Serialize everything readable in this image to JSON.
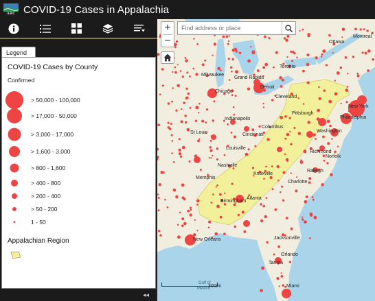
{
  "header": {
    "title": "COVID-19 Cases in Appalachia",
    "logo_text": "ARC"
  },
  "toolbar": {
    "tools": [
      "info-icon",
      "list-icon",
      "grid-icon",
      "layers-icon",
      "filter-list-icon"
    ]
  },
  "legend": {
    "tab_label": "Legend",
    "title": "COVID-19 Cases by County",
    "field": "Confirmed",
    "classes": [
      {
        "label": "> 50,000 - 100,000"
      },
      {
        "label": "> 17,000 - 50,000"
      },
      {
        "label": "> 3,000 - 17,000"
      },
      {
        "label": "> 1,600 - 3,000"
      },
      {
        "label": "> 800 - 1,600"
      },
      {
        "label": "> 400 - 800"
      },
      {
        "label": "> 200 - 400"
      },
      {
        "label": "> 50 - 200"
      },
      {
        "label": "1 - 50"
      }
    ],
    "region_label": "Appalachian Region",
    "dot_color": "#ee4444",
    "region_color": "#f2f09a"
  },
  "panel": {
    "collapse_label": "◂◂"
  },
  "map": {
    "search_placeholder": "Find address or place",
    "zoom_in": "+",
    "zoom_out": "−",
    "scale_label": "300mi",
    "cities": [
      {
        "name": "Ottawa",
        "key": "ottawa"
      },
      {
        "name": "Montreal",
        "key": "montreal"
      },
      {
        "name": "Toronto",
        "key": "toronto"
      },
      {
        "name": "Milwaukee",
        "key": "milwaukee"
      },
      {
        "name": "Grand Rapids",
        "key": "grand-rapids"
      },
      {
        "name": "Detroit",
        "key": "detroit"
      },
      {
        "name": "Chicago",
        "key": "chicago"
      },
      {
        "name": "Cleveland",
        "key": "cleveland"
      },
      {
        "name": "Pittsburgh",
        "key": "pittsburgh"
      },
      {
        "name": "New York",
        "key": "new-york"
      },
      {
        "name": "Philadelphia",
        "key": "philadelphia"
      },
      {
        "name": "Indianapolis",
        "key": "indianapolis"
      },
      {
        "name": "Columbus",
        "key": "columbus"
      },
      {
        "name": "Washington",
        "key": "washington"
      },
      {
        "name": "St Louis",
        "key": "st-louis"
      },
      {
        "name": "Cincinnati",
        "key": "cincinnati"
      },
      {
        "name": "Richmond",
        "key": "richmond"
      },
      {
        "name": "Louisville",
        "key": "louisville"
      },
      {
        "name": "Norfolk",
        "key": "norfolk"
      },
      {
        "name": "Nashville",
        "key": "nashville"
      },
      {
        "name": "Knoxville",
        "key": "knoxville"
      },
      {
        "name": "Raleigh",
        "key": "raleigh"
      },
      {
        "name": "Memphis",
        "key": "memphis"
      },
      {
        "name": "Charlotte",
        "key": "charlotte"
      },
      {
        "name": "Atlanta",
        "key": "atlanta"
      },
      {
        "name": "Birmingham",
        "key": "birmingham"
      },
      {
        "name": "New Orleans",
        "key": "new-orleans"
      },
      {
        "name": "Jacksonville",
        "key": "jacksonville"
      },
      {
        "name": "Orlando",
        "key": "orlando"
      },
      {
        "name": "Tampa",
        "key": "tampa"
      },
      {
        "name": "Miami",
        "key": "miami"
      }
    ],
    "water_labels": [
      "Gulf of",
      "Mexico"
    ]
  }
}
